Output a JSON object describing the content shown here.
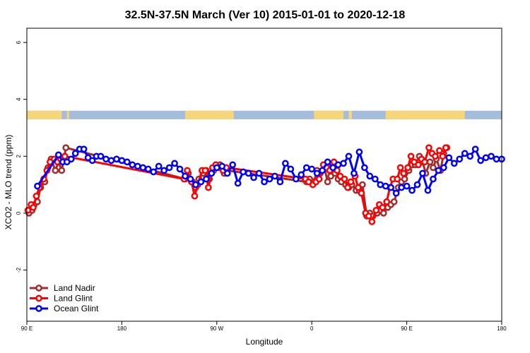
{
  "chart_data": {
    "type": "line",
    "title": "32.5N-37.5N March (Ver 10)   2015-01-01 to 2020-12-18",
    "xlabel": "Longitude",
    "ylabel": "XCO2 - MLO trend (ppm)",
    "xlim": [
      0,
      450
    ],
    "ylim": [
      -3.8,
      6.5
    ],
    "x_ticks": [
      {
        "value": 0,
        "label": "90 E"
      },
      {
        "value": 90,
        "label": "180"
      },
      {
        "value": 180,
        "label": "90 W"
      },
      {
        "value": 270,
        "label": "0"
      },
      {
        "value": 360,
        "label": "90 E"
      },
      {
        "value": 450,
        "label": "180"
      }
    ],
    "y_ticks": [
      -2,
      0,
      2,
      4,
      6
    ],
    "land_mask_band": {
      "y_range": [
        3.3,
        3.6
      ],
      "land_color": "#f7d57a",
      "ocean_color": "#a5bddc",
      "land_ranges": [
        [
          0,
          33
        ],
        [
          38,
          40
        ],
        [
          150,
          196
        ],
        [
          272,
          300
        ],
        [
          305,
          308
        ],
        [
          340,
          415
        ]
      ]
    },
    "legend_position": "bottom-left",
    "series": [
      {
        "name": "Land Nadir",
        "color": "#a52a2a",
        "x": [
          2,
          5,
          7,
          10,
          13,
          17,
          20,
          23,
          27,
          30,
          33,
          37,
          150,
          153,
          157,
          160,
          163,
          167,
          170,
          173,
          177,
          180,
          183,
          187,
          190,
          265,
          268,
          272,
          275,
          278,
          282,
          285,
          288,
          292,
          295,
          298,
          302,
          305,
          308,
          312,
          315,
          318,
          322,
          325,
          328,
          332,
          335,
          338,
          342,
          345,
          348,
          352,
          355,
          358,
          362,
          365,
          368,
          372,
          375,
          378,
          382,
          385,
          388,
          392,
          395,
          398
        ],
        "y": [
          0.0,
          0.1,
          0.3,
          0.4,
          0.9,
          1.1,
          1.6,
          1.9,
          1.5,
          1.8,
          1.5,
          2.3,
          1.2,
          1.4,
          1.1,
          0.9,
          1.2,
          1.4,
          1.5,
          1.2,
          1.5,
          1.6,
          1.7,
          1.4,
          1.5,
          1.1,
          1.2,
          1.1,
          1.5,
          1.4,
          1.6,
          1.1,
          1.3,
          1.4,
          1.2,
          1.1,
          1.0,
          0.9,
          1.0,
          0.8,
          0.8,
          1.0,
          -0.1,
          0.0,
          -0.1,
          0.0,
          0.1,
          0.0,
          0.2,
          0.3,
          0.4,
          0.9,
          1.1,
          1.2,
          1.5,
          1.7,
          1.7,
          2.0,
          1.8,
          1.4,
          1.8,
          1.6,
          1.9,
          1.5,
          2.1,
          2.3
        ]
      },
      {
        "name": "Land Glint",
        "color": "#ff0000",
        "x": [
          1,
          4,
          6,
          9,
          12,
          16,
          19,
          22,
          26,
          29,
          32,
          36,
          149,
          152,
          156,
          159,
          162,
          166,
          169,
          172,
          176,
          179,
          182,
          186,
          189,
          264,
          267,
          271,
          274,
          277,
          281,
          284,
          287,
          291,
          294,
          297,
          301,
          304,
          307,
          311,
          314,
          317,
          321,
          324,
          327,
          331,
          334,
          337,
          341,
          344,
          347,
          351,
          354,
          357,
          361,
          364,
          367,
          371,
          374,
          377,
          381,
          384,
          387,
          391,
          394,
          397
        ],
        "y": [
          0.1,
          0.3,
          0.2,
          0.6,
          0.9,
          1.2,
          1.5,
          1.8,
          1.9,
          1.8,
          1.9,
          2.0,
          1.2,
          1.5,
          1.1,
          0.6,
          1.0,
          1.5,
          1.5,
          0.9,
          1.6,
          1.7,
          1.6,
          1.5,
          1.6,
          1.2,
          1.1,
          1.0,
          1.1,
          1.2,
          1.7,
          1.6,
          1.5,
          1.8,
          1.5,
          1.3,
          1.2,
          0.9,
          1.1,
          1.3,
          0.9,
          0.7,
          0.0,
          -0.1,
          -0.3,
          0.1,
          0.3,
          0.2,
          0.4,
          0.9,
          1.2,
          1.2,
          1.6,
          1.4,
          1.6,
          2.0,
          1.8,
          1.7,
          1.9,
          1.8,
          2.3,
          2.1,
          2.0,
          2.2,
          2.0,
          2.3
        ]
      },
      {
        "name": "Ocean Glint",
        "color": "#0000ff",
        "x": [
          10,
          30,
          34,
          38,
          42,
          46,
          50,
          54,
          58,
          62,
          66,
          70,
          75,
          80,
          85,
          90,
          95,
          100,
          105,
          110,
          115,
          120,
          125,
          130,
          135,
          140,
          145,
          150,
          155,
          160,
          165,
          170,
          175,
          180,
          185,
          190,
          195,
          200,
          205,
          210,
          215,
          220,
          225,
          230,
          235,
          240,
          245,
          250,
          255,
          260,
          265,
          270,
          275,
          280,
          285,
          290,
          295,
          300,
          305,
          310,
          315,
          320,
          325,
          330,
          335,
          340,
          345,
          350,
          355,
          360,
          365,
          370,
          375,
          380,
          385,
          390,
          395,
          400,
          405,
          410,
          415,
          420,
          425,
          430,
          435,
          440,
          445,
          450
        ],
        "y": [
          0.95,
          2.05,
          1.8,
          1.8,
          1.9,
          2.1,
          2.25,
          2.25,
          1.95,
          1.85,
          2.0,
          2.0,
          1.9,
          1.85,
          1.9,
          1.85,
          1.8,
          1.7,
          1.65,
          1.6,
          1.55,
          1.45,
          1.65,
          1.5,
          1.6,
          1.75,
          1.55,
          1.3,
          1.2,
          1.0,
          1.1,
          1.2,
          1.4,
          1.6,
          1.65,
          1.4,
          1.7,
          1.05,
          1.45,
          1.4,
          1.25,
          1.4,
          1.1,
          1.2,
          1.3,
          1.1,
          1.75,
          1.55,
          1.2,
          1.35,
          1.6,
          1.55,
          1.4,
          1.5,
          1.8,
          1.6,
          1.7,
          1.75,
          2.0,
          1.4,
          2.15,
          1.6,
          1.3,
          1.2,
          1.0,
          0.95,
          0.9,
          0.7,
          0.9,
          0.95,
          0.8,
          1.0,
          1.4,
          0.8,
          1.2,
          1.5,
          1.6,
          1.95,
          1.75,
          1.9,
          2.1,
          2.0,
          2.25,
          1.85,
          1.95,
          2.0,
          1.9,
          1.9
        ]
      }
    ]
  }
}
